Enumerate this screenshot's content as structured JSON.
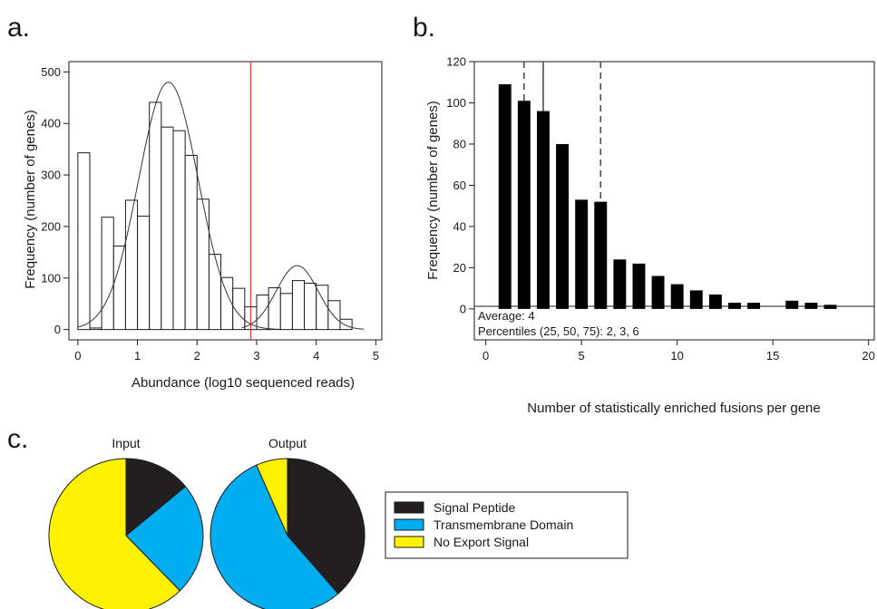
{
  "chart_data": [
    {
      "panel": "a.",
      "type": "bar",
      "xlabel": "Abundance (log10 sequenced reads)",
      "ylabel": "Frequency (number of genes)",
      "xlim": [
        -0.15,
        5.1
      ],
      "ylim": [
        -20,
        520
      ],
      "xticks": [
        0,
        1,
        2,
        3,
        4,
        5
      ],
      "yticks": [
        0,
        100,
        200,
        300,
        400,
        500
      ],
      "bin_width": 0.2,
      "bins": [
        {
          "x0": 0.0,
          "x1": 0.2,
          "value": 343
        },
        {
          "x0": 0.2,
          "x1": 0.4,
          "value": 3
        },
        {
          "x0": 0.4,
          "x1": 0.6,
          "value": 218
        },
        {
          "x0": 0.6,
          "x1": 0.8,
          "value": 162
        },
        {
          "x0": 0.8,
          "x1": 1.0,
          "value": 251
        },
        {
          "x0": 1.0,
          "x1": 1.2,
          "value": 220
        },
        {
          "x0": 1.2,
          "x1": 1.4,
          "value": 441
        },
        {
          "x0": 1.4,
          "x1": 1.6,
          "value": 393
        },
        {
          "x0": 1.6,
          "x1": 1.8,
          "value": 386
        },
        {
          "x0": 1.8,
          "x1": 2.0,
          "value": 338
        },
        {
          "x0": 2.0,
          "x1": 2.2,
          "value": 253
        },
        {
          "x0": 2.2,
          "x1": 2.4,
          "value": 146
        },
        {
          "x0": 2.4,
          "x1": 2.6,
          "value": 101
        },
        {
          "x0": 2.6,
          "x1": 2.8,
          "value": 80
        },
        {
          "x0": 2.8,
          "x1": 3.0,
          "value": 44
        },
        {
          "x0": 3.0,
          "x1": 3.2,
          "value": 67
        },
        {
          "x0": 3.2,
          "x1": 3.4,
          "value": 81
        },
        {
          "x0": 3.4,
          "x1": 3.6,
          "value": 70
        },
        {
          "x0": 3.6,
          "x1": 3.8,
          "value": 95
        },
        {
          "x0": 3.8,
          "x1": 4.0,
          "value": 90
        },
        {
          "x0": 4.0,
          "x1": 4.2,
          "value": 86
        },
        {
          "x0": 4.2,
          "x1": 4.4,
          "value": 56
        },
        {
          "x0": 4.4,
          "x1": 4.6,
          "value": 20
        }
      ],
      "fit_curves": [
        {
          "peak": 480,
          "mean": 1.52,
          "sd": 0.5,
          "x_range": [
            0.0,
            3.4
          ]
        },
        {
          "peak": 124,
          "mean": 3.68,
          "sd": 0.35,
          "x_range": [
            2.75,
            4.8
          ]
        }
      ],
      "threshold_line": {
        "x": 2.9,
        "color": "#e8242a"
      }
    },
    {
      "panel": "b.",
      "type": "bar",
      "xlabel": "Number of statistically enriched fusions per gene",
      "ylabel": "Frequency (number of genes)",
      "xlim": [
        -0.6,
        20.3
      ],
      "ylim": [
        -15,
        120
      ],
      "xticks": [
        0,
        5,
        10,
        15,
        20
      ],
      "yticks": [
        0,
        20,
        40,
        60,
        80,
        100,
        120
      ],
      "categories": [
        1,
        2,
        3,
        4,
        5,
        6,
        7,
        8,
        9,
        10,
        11,
        12,
        13,
        14,
        15,
        16,
        17,
        18
      ],
      "values": [
        109,
        101,
        96,
        80,
        53,
        52,
        24,
        22,
        16,
        12,
        9,
        7,
        3,
        3,
        0,
        4,
        3,
        2
      ],
      "reference_lines": [
        {
          "x": 2,
          "style": "dashed"
        },
        {
          "x": 3,
          "style": "solid"
        },
        {
          "x": 6,
          "style": "dashed"
        }
      ],
      "annotations": [
        "Average: 4",
        "Percentiles (25, 50, 75): 2, 3, 6"
      ]
    },
    {
      "panel": "c.",
      "type": "pie",
      "legend_position": "right",
      "categories": [
        "Signal Peptide",
        "Transmembrane Domain",
        "No Export Signal"
      ],
      "colors": [
        "#231f20",
        "#00aeef",
        "#fff200"
      ],
      "pies": [
        {
          "title": "Input",
          "values": [
            0.14,
            0.237,
            0.623
          ]
        },
        {
          "title": "Output",
          "values": [
            0.386,
            0.548,
            0.066
          ]
        }
      ]
    }
  ]
}
